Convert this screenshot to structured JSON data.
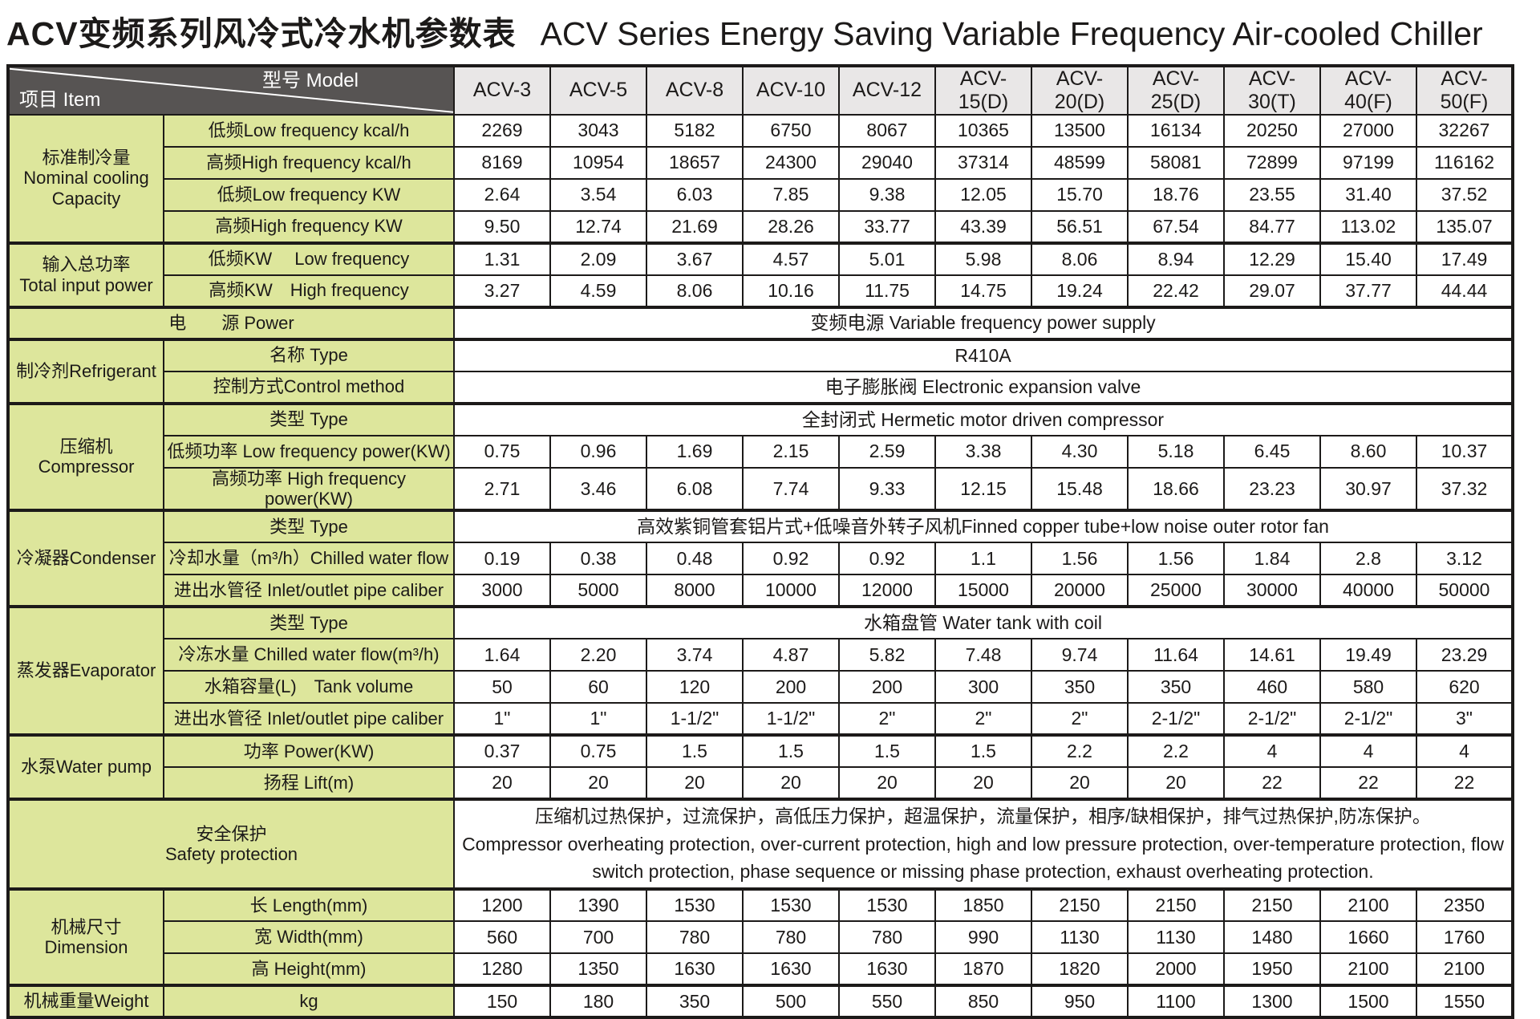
{
  "title": {
    "zh": "ACV变频系列风冷式冷水机参数表",
    "en": "ACV Series Energy Saving Variable Frequency Air-cooled Chiller"
  },
  "table": {
    "corner": {
      "model": "型号  Model",
      "item": "项目  Item"
    },
    "models": [
      "ACV-3",
      "ACV-5",
      "ACV-8",
      "ACV-10",
      "ACV-12",
      "ACV-15(D)",
      "ACV-20(D)",
      "ACV-25(D)",
      "ACV-30(T)",
      "ACV-40(F)",
      "ACV-50(F)"
    ],
    "groups": {
      "cooling": "标准制冷量\nNominal cooling\nCapacity",
      "input": "输入总功率\nTotal input power",
      "refrigerant": "制冷剂Refrigerant",
      "compressor": "压缩机Compressor",
      "condenser": "冷凝器Condenser",
      "evaporator": "蒸发器Evaporator",
      "pump": "水泵Water pump",
      "safety": "安全保护\nSafety protection",
      "dimension": "机械尺寸Dimension",
      "weight": "机械重量Weight"
    },
    "rows": {
      "cooling_low_kcal": {
        "label": "低频Low frequency  kcal/h",
        "values": [
          "2269",
          "3043",
          "5182",
          "6750",
          "8067",
          "10365",
          "13500",
          "16134",
          "20250",
          "27000",
          "32267"
        ]
      },
      "cooling_high_kcal": {
        "label": "高频High frequency  kcal/h",
        "values": [
          "8169",
          "10954",
          "18657",
          "24300",
          "29040",
          "37314",
          "48599",
          "58081",
          "72899",
          "97199",
          "116162"
        ]
      },
      "cooling_low_kw": {
        "label": "低频Low frequency  KW",
        "values": [
          "2.64",
          "3.54",
          "6.03",
          "7.85",
          "9.38",
          "12.05",
          "15.70",
          "18.76",
          "23.55",
          "31.40",
          "37.52"
        ]
      },
      "cooling_high_kw": {
        "label": "高频High frequency  KW",
        "values": [
          "9.50",
          "12.74",
          "21.69",
          "28.26",
          "33.77",
          "43.39",
          "56.51",
          "67.54",
          "84.77",
          "113.02",
          "135.07"
        ]
      },
      "input_low": {
        "label": "低频KW　 Low frequency",
        "values": [
          "1.31",
          "2.09",
          "3.67",
          "4.57",
          "5.01",
          "5.98",
          "8.06",
          "8.94",
          "12.29",
          "15.40",
          "17.49"
        ]
      },
      "input_high": {
        "label": "高频KW　High frequency",
        "values": [
          "3.27",
          "4.59",
          "8.06",
          "10.16",
          "11.75",
          "14.75",
          "19.24",
          "22.42",
          "29.07",
          "37.77",
          "44.44"
        ]
      },
      "power": {
        "label": "电　　源  Power",
        "value": "变频电源 Variable frequency power supply"
      },
      "refrigerant_name": {
        "label": "名称  Type",
        "value": "R410A"
      },
      "refrigerant_control": {
        "label": "控制方式Control method",
        "value": "电子膨胀阀 Electronic expansion valve"
      },
      "comp_type": {
        "label": "类型 Type",
        "value": "全封闭式 Hermetic motor driven compressor"
      },
      "comp_low": {
        "label": "低频功率  Low frequency power(KW)",
        "values": [
          "0.75",
          "0.96",
          "1.69",
          "2.15",
          "2.59",
          "3.38",
          "4.30",
          "5.18",
          "6.45",
          "8.60",
          "10.37"
        ]
      },
      "comp_high": {
        "label": "高频功率 High frequency power(KW)",
        "values": [
          "2.71",
          "3.46",
          "6.08",
          "7.74",
          "9.33",
          "12.15",
          "15.48",
          "18.66",
          "23.23",
          "30.97",
          "37.32"
        ]
      },
      "cond_type": {
        "label": "类型 Type",
        "value": "高效紫铜管套铝片式+低噪音外转子风机Finned copper tube+low noise outer rotor fan"
      },
      "cond_flow": {
        "label": "冷却水量（m³/h）Chilled water flow",
        "values": [
          "0.19",
          "0.38",
          "0.48",
          "0.92",
          "0.92",
          "1.1",
          "1.56",
          "1.56",
          "1.84",
          "2.8",
          "3.12"
        ]
      },
      "cond_pipe": {
        "label": "进出水管径 Inlet/outlet pipe caliber",
        "values": [
          "3000",
          "5000",
          "8000",
          "10000",
          "12000",
          "15000",
          "20000",
          "25000",
          "30000",
          "40000",
          "50000"
        ]
      },
      "evap_type": {
        "label": "类型 Type",
        "value": "水箱盘管 Water tank with coil"
      },
      "evap_flow": {
        "label": "冷冻水量 Chilled water flow(m³/h)",
        "values": [
          "1.64",
          "2.20",
          "3.74",
          "4.87",
          "5.82",
          "7.48",
          "9.74",
          "11.64",
          "14.61",
          "19.49",
          "23.29"
        ]
      },
      "evap_tank": {
        "label": "水箱容量(L)　Tank volume",
        "values": [
          "50",
          "60",
          "120",
          "200",
          "200",
          "300",
          "350",
          "350",
          "460",
          "580",
          "620"
        ]
      },
      "evap_pipe": {
        "label": "进出水管径  Inlet/outlet pipe caliber",
        "values": [
          "1\"",
          "1\"",
          "1-1/2\"",
          "1-1/2\"",
          "2\"",
          "2\"",
          "2\"",
          "2-1/2\"",
          "2-1/2\"",
          "2-1/2\"",
          "3\""
        ]
      },
      "pump_power": {
        "label": "功率  Power(KW)",
        "values": [
          "0.37",
          "0.75",
          "1.5",
          "1.5",
          "1.5",
          "1.5",
          "2.2",
          "2.2",
          "4",
          "4",
          "4"
        ]
      },
      "pump_lift": {
        "label": "扬程  Lift(m)",
        "values": [
          "20",
          "20",
          "20",
          "20",
          "20",
          "20",
          "20",
          "20",
          "22",
          "22",
          "22"
        ]
      },
      "safety": {
        "zh": "压缩机过热保护，过流保护，高低压力保护，超温保护，流量保护，相序/缺相保护，排气过热保护,防冻保护。",
        "en": "Compressor overheating protection, over-current protection, high and low pressure protection, over-temperature protection, flow switch protection, phase sequence or missing phase protection, exhaust overheating protection."
      },
      "dim_length": {
        "label": "长  Length(mm)",
        "values": [
          "1200",
          "1390",
          "1530",
          "1530",
          "1530",
          "1850",
          "2150",
          "2150",
          "2150",
          "2100",
          "2350"
        ]
      },
      "dim_width": {
        "label": "宽  Width(mm)",
        "values": [
          "560",
          "700",
          "780",
          "780",
          "780",
          "990",
          "1130",
          "1130",
          "1480",
          "1660",
          "1760"
        ]
      },
      "dim_height": {
        "label": "高  Height(mm)",
        "values": [
          "1280",
          "1350",
          "1630",
          "1630",
          "1630",
          "1870",
          "1820",
          "2000",
          "1950",
          "2100",
          "2100"
        ]
      },
      "weight_kg": {
        "label": "kg",
        "values": [
          "150",
          "180",
          "350",
          "500",
          "550",
          "850",
          "950",
          "1100",
          "1300",
          "1500",
          "1550"
        ]
      }
    },
    "colors": {
      "label_bg": "#dde69c",
      "header_bg": "#575453",
      "model_bg": "#e9e7e7",
      "border": "#1c1a19"
    }
  }
}
